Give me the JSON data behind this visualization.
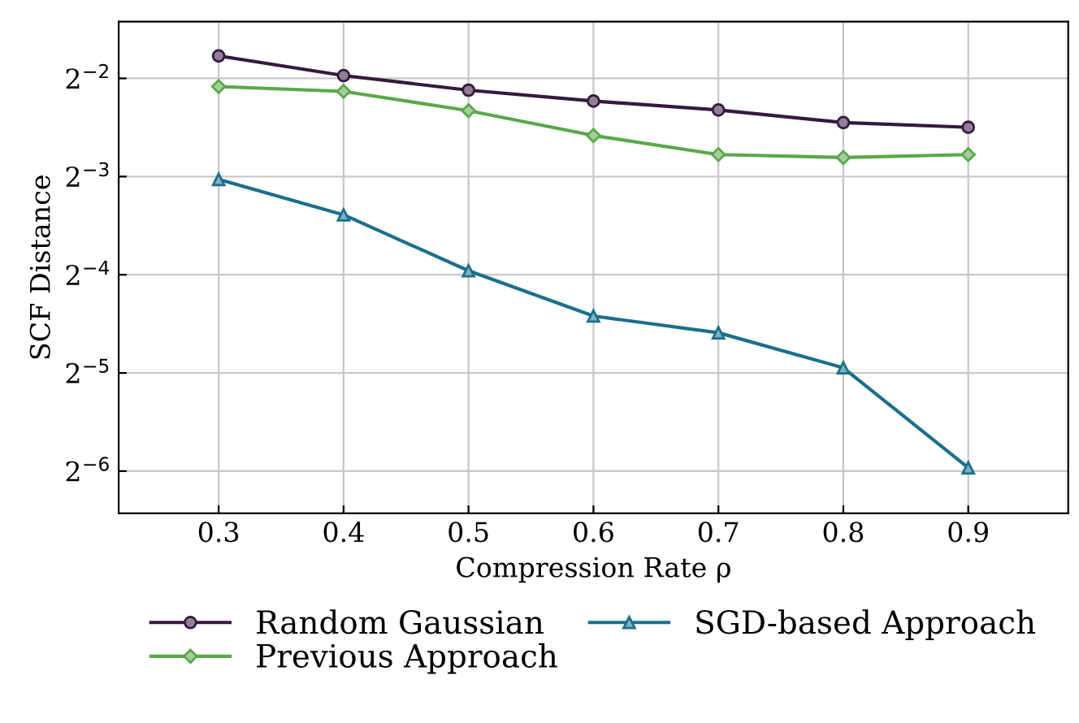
{
  "chart_data": {
    "type": "line",
    "xlabel": "Compression Rate ρ",
    "ylabel": "SCF Distance",
    "log": "y",
    "grid": true,
    "legend": "bottom",
    "x": [
      0.3,
      0.4,
      0.5,
      0.6,
      0.7,
      0.8,
      0.9
    ],
    "xlim": [
      0.22,
      0.98
    ],
    "xticks": [
      0.3,
      0.4,
      0.5,
      0.6,
      0.7,
      0.8,
      0.9
    ],
    "ylim": [
      0.0116,
      0.373
    ],
    "yticks": [
      {
        "value": 0.25,
        "label": "2$^{−2}$"
      },
      {
        "value": 0.125,
        "label": "2$^{−3}$"
      },
      {
        "value": 0.0625,
        "label": "2$^{−4}$"
      },
      {
        "value": 0.03125,
        "label": "2$^{−5}$"
      },
      {
        "value": 0.015625,
        "label": "2$^{−6}$"
      }
    ],
    "series": [
      {
        "name": "Random Gaussian",
        "color": "#35193f",
        "marker": "circle",
        "values": [
          0.293,
          0.255,
          0.23,
          0.213,
          0.2,
          0.183,
          0.177
        ]
      },
      {
        "name": "SGD-based Approach",
        "color": "#1b6f8c",
        "marker": "triangle",
        "values": [
          0.1225,
          0.0954,
          0.0643,
          0.0467,
          0.0415,
          0.0324,
          0.016
        ]
      },
      {
        "name": "Previous Approach",
        "color": "#5aa84a",
        "marker": "diamond",
        "values": [
          0.236,
          0.228,
          0.199,
          0.167,
          0.146,
          0.143,
          0.146
        ]
      }
    ]
  }
}
